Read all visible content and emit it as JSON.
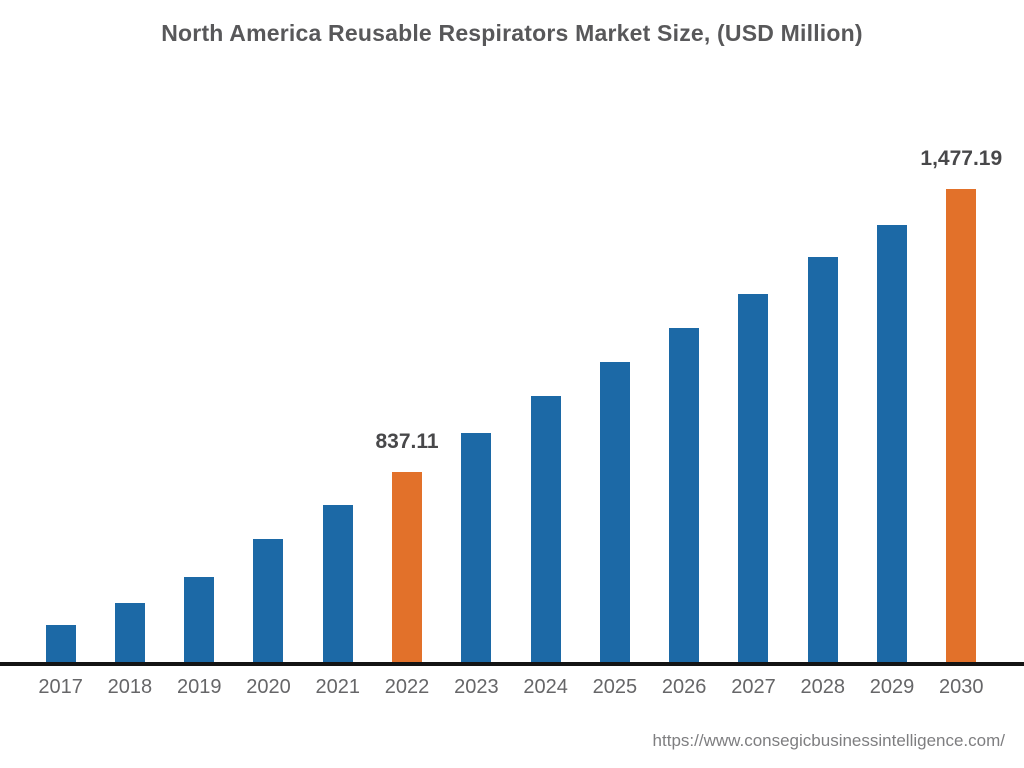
{
  "title": "North America Reusable Respirators Market Size, (USD Million)",
  "source_url": "https://www.consegicbusinessintelligence.com/",
  "colors": {
    "primary_bar": "#1c69a6",
    "highlight_bar": "#e2712a",
    "axis_line": "#141414",
    "title_text": "#58585a",
    "tick_text": "#666668",
    "value_label_text": "#48484a",
    "source_text": "#7e7e80"
  },
  "chart_data": {
    "type": "bar",
    "title": "North America Reusable Respirators Market Size, (USD Million)",
    "xlabel": "",
    "ylabel": "USD Million",
    "categories": [
      "2017",
      "2018",
      "2019",
      "2020",
      "2021",
      "2022",
      "2023",
      "2024",
      "2025",
      "2026",
      "2027",
      "2028",
      "2029",
      "2030"
    ],
    "values": [
      492,
      541,
      600,
      686,
      762,
      837.11,
      924,
      1008,
      1086,
      1162,
      1238,
      1323,
      1394,
      1477.19
    ],
    "labeled_points": {
      "2022": "837.11",
      "2030": "1,477.19"
    },
    "highlighted_categories": [
      "2022",
      "2030"
    ],
    "notes": "Only 2022 and 2030 carry printed data labels; other values estimated from bar heights.",
    "axis": {
      "value_axis_visible": false,
      "gridlines": false,
      "baseline_value": 401,
      "max_value": 1477.19
    },
    "legend": "none"
  }
}
